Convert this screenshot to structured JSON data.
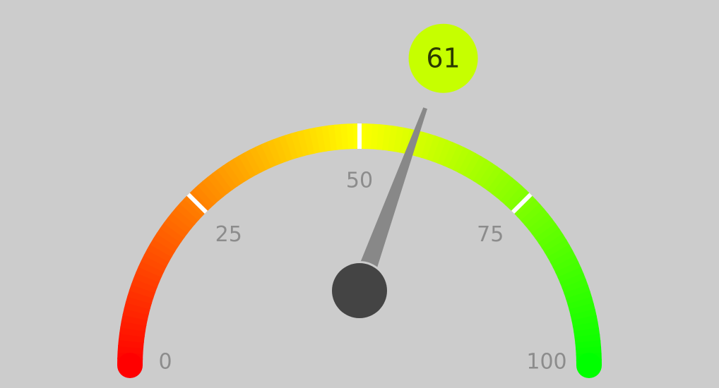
{
  "chart_data": {
    "type": "gauge",
    "min": 0,
    "max": 100,
    "value": 61,
    "value_label": "61",
    "ticks": [
      {
        "value": 0,
        "label": "0"
      },
      {
        "value": 25,
        "label": "25"
      },
      {
        "value": 50,
        "label": "50"
      },
      {
        "value": 75,
        "label": "75"
      },
      {
        "value": 100,
        "label": "100"
      }
    ],
    "colors": {
      "start": "#ff0000",
      "middle": "#ffff00",
      "end": "#00ff00",
      "needle": "#888888",
      "hub": "#444444",
      "value_bubble": "#c6ff00",
      "tick_marks": "#ffffff",
      "tick_labels": "#8c8c8c",
      "background": "#cccccc"
    }
  }
}
